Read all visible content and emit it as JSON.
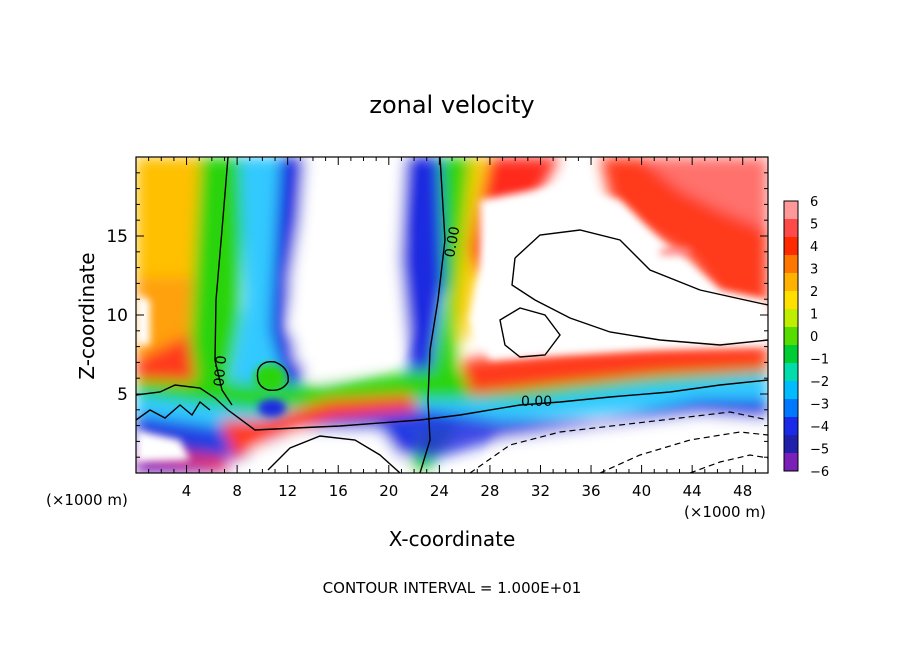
{
  "chart_data": {
    "type": "heatmap",
    "title": "zonal velocity",
    "xlabel": "X-coordinate",
    "ylabel": "Z-coordinate",
    "x_units": "(×1000 m)",
    "x_units_right": "(×1000 m)",
    "xlim": [
      0,
      50
    ],
    "ylim": [
      0,
      20
    ],
    "x_ticks": [
      "4",
      "8",
      "12",
      "16",
      "20",
      "24",
      "28",
      "32",
      "36",
      "40",
      "44",
      "48"
    ],
    "y_ticks": [
      "5",
      "10",
      "15"
    ],
    "colorbar": {
      "min": -6,
      "max": 6,
      "labels": [
        "6",
        "5",
        "4",
        "3",
        "2",
        "1",
        "0",
        "−1",
        "−2",
        "−3",
        "−4",
        "−5",
        "−6"
      ]
    },
    "contour_labels": [
      "0.00",
      "0.00",
      "0.00"
    ],
    "footnote": "CONTOUR INTERVAL = 1.000E+01"
  }
}
